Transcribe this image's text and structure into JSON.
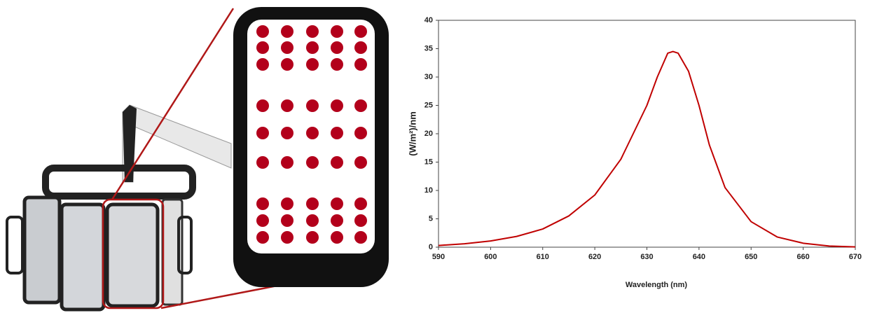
{
  "chart_data": {
    "type": "line",
    "xlabel": "Wavelength (nm)",
    "ylabel": "(W/m²)/nm",
    "x": [
      590,
      595,
      600,
      605,
      610,
      615,
      620,
      625,
      630,
      632,
      634,
      635,
      636,
      638,
      640,
      642,
      645,
      650,
      655,
      660,
      665,
      670
    ],
    "series": [
      {
        "color": "#c00000",
        "values": [
          0.3,
          0.6,
          1.1,
          1.9,
          3.2,
          5.5,
          9.2,
          15.5,
          25,
          30,
          34.2,
          34.5,
          34.2,
          31,
          25,
          18,
          10.5,
          4.5,
          1.8,
          0.7,
          0.2,
          0.05
        ]
      }
    ],
    "xlim": [
      590,
      670
    ],
    "xticks": [
      590,
      600,
      610,
      620,
      630,
      640,
      650,
      660,
      670
    ],
    "ylim": [
      0,
      40
    ],
    "yticks": [
      0,
      5,
      10,
      15,
      20,
      25,
      30,
      35,
      40
    ]
  }
}
